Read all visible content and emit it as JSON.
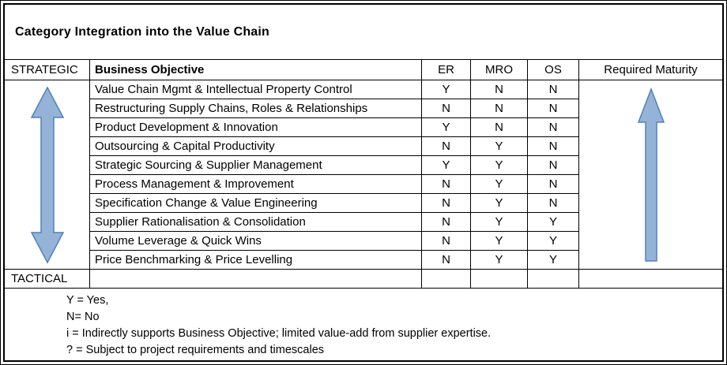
{
  "title": "Category  Integration into the Value Chain",
  "table": {
    "left_axis": {
      "top": "STRATEGIC",
      "bottom": "TACTICAL"
    },
    "headers": {
      "objective": "Business Objective",
      "er": "ER",
      "mro": "MRO",
      "os": "OS",
      "maturity": "Required Maturity"
    },
    "rows": [
      {
        "objective": "Value Chain Mgmt & Intellectual Property Control",
        "er": "Y",
        "mro": "N",
        "os": "N"
      },
      {
        "objective": "Restructuring Supply Chains, Roles & Relationships",
        "er": "N",
        "mro": "N",
        "os": "N"
      },
      {
        "objective": "Product Development & Innovation",
        "er": "Y",
        "mro": "N",
        "os": "N"
      },
      {
        "objective": "Outsourcing & Capital Productivity",
        "er": "N",
        "mro": "Y",
        "os": "N"
      },
      {
        "objective": "Strategic Sourcing & Supplier Management",
        "er": "Y",
        "mro": "Y",
        "os": "N"
      },
      {
        "objective": "Process Management & Improvement",
        "er": "N",
        "mro": "Y",
        "os": "N"
      },
      {
        "objective": "Specification Change & Value Engineering",
        "er": "N",
        "mro": "Y",
        "os": "N"
      },
      {
        "objective": "Supplier Rationalisation & Consolidation",
        "er": "N",
        "mro": "Y",
        "os": "Y"
      },
      {
        "objective": "Volume Leverage & Quick Wins",
        "er": "N",
        "mro": "Y",
        "os": "Y"
      },
      {
        "objective": "Price Benchmarking & Price Levelling",
        "er": "N",
        "mro": "Y",
        "os": "Y"
      }
    ]
  },
  "legend": {
    "lines": [
      "Y = Yes,",
      "N= No",
      "i = Indirectly supports Business Objective; limited value-add from supplier expertise.",
      "? = Subject to project requirements and timescales"
    ]
  },
  "colors": {
    "arrow_fill": "#95B3D7",
    "arrow_stroke": "#4F81BD"
  }
}
